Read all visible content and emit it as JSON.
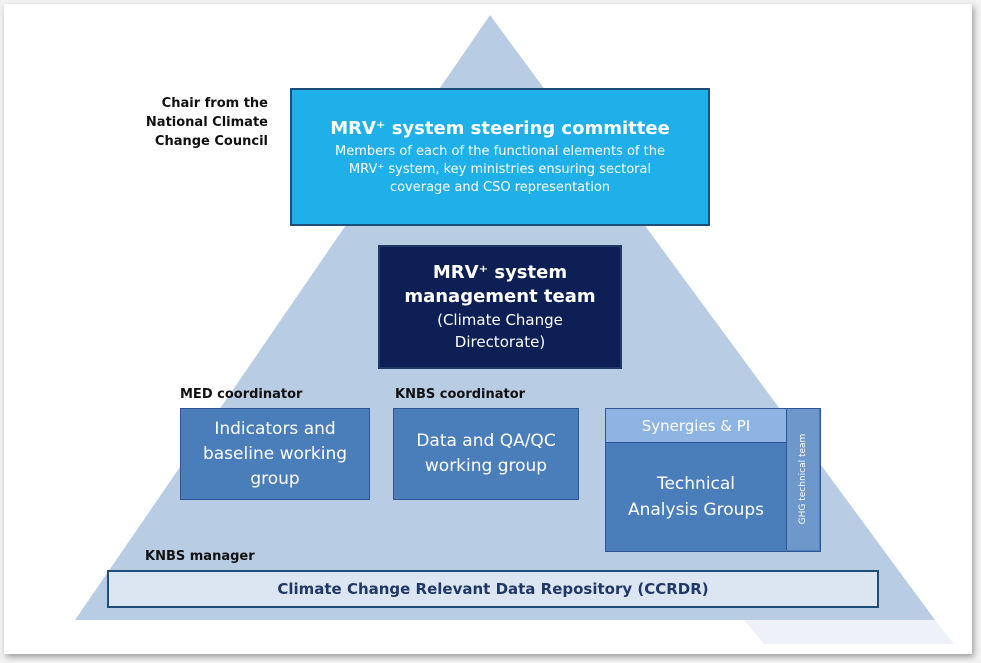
{
  "steering_committee": {
    "chair_label": [
      "Chair from the",
      "National Climate",
      "Change Council"
    ],
    "title": "MRV⁺ system steering committee",
    "description": [
      "Members of each of the functional elements of the",
      "MRV⁺ system, key ministries ensuring sectoral",
      "coverage and CSO representation"
    ]
  },
  "management_team": {
    "lines": [
      "MRV⁺ system",
      "management team",
      "(Climate Change",
      "Directorate)"
    ]
  },
  "working_groups": [
    {
      "coordinator": "MED coordinator",
      "lines": [
        "Indicators and",
        "baseline working",
        "group"
      ]
    },
    {
      "coordinator": "KNBS coordinator",
      "lines": [
        "Data and QA/QC",
        "working group"
      ]
    }
  ],
  "technical": {
    "synergies": "Synergies & PI",
    "lines": [
      "Technical",
      "Analysis Groups"
    ],
    "ghg_team": "GHG technical team"
  },
  "repository": {
    "manager": "KNBS manager",
    "label": "Climate Change Relevant Data Repository (CCRDR)"
  }
}
